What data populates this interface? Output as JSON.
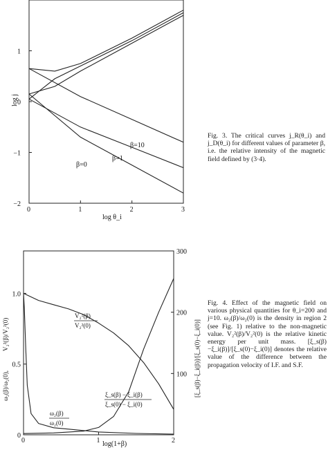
{
  "figure3": {
    "caption": "Fig. 3.  The critical curves  j_R(θ_i) and j_D(θ_i) for different values of parameter β, i.e. the relative intensity of the magnetic field defined by (3·4).",
    "xlabel": "log θ_i",
    "ylabel": "log j",
    "x_ticks": [
      "0",
      "1",
      "2",
      "3"
    ],
    "y_ticks": [
      "1",
      "0",
      "−1",
      "−2"
    ],
    "curve_labels": [
      "β=10",
      "β=1",
      "β=0"
    ]
  },
  "figure4": {
    "caption": "Fig. 4.  Effect of the magnetic field on various physical quantities for θ_i=200 and j=10. ω₂(β)/ω₂(0) is the density in region 2 (see Fig. 1) relative to the non-magnetic value. V₂²(β)/V₂²(0) is the relative kinetic energy per unit mass. [ξ_s(β)−ξ_i(β)]/[ξ_s(0)−ξ_i(0)] denotes the relative value of the difference between the propagation velocity of I.F. and S.F.",
    "xlabel": "log(1+β)",
    "ylabel_left_top": "V₂²(β)/V₂²(0)",
    "ylabel_left_bottom": "ω₂(β)/ω₂(0),",
    "ylabel_right": "[ξ_s(β)−ξ_i(β)]/[ξ_s(0)−ξ_i(0)]",
    "x_ticks": [
      "0",
      "1",
      "2"
    ],
    "y_left_ticks": [
      "1.0",
      "0.5",
      "0"
    ],
    "y_right_ticks": [
      "300",
      "200",
      "100"
    ],
    "label_v_num": "V₂²(β)",
    "label_v_den": "V₂²(0)",
    "label_xi_num": "ξ_s(β) − ξ_i(β)",
    "label_xi_den": "ξ_s(0) − ξ_i(0)",
    "label_w_num": "ω₂(β)",
    "label_w_den": "ω₂(0)"
  },
  "chart_data": [
    {
      "type": "line",
      "title": "",
      "xlabel": "log θ_i",
      "ylabel": "log j",
      "xlim": [
        0,
        3
      ],
      "ylim": [
        -2,
        2
      ],
      "x_ticks": [
        0,
        1,
        2,
        3
      ],
      "y_ticks": [
        1,
        0,
        -1,
        -2
      ],
      "series": [
        {
          "name": "β=10",
          "x": [
            0,
            1,
            2,
            3
          ],
          "y": [
            0.65,
            0.1,
            -0.35,
            -0.8
          ]
        },
        {
          "name": "β=1",
          "x": [
            0,
            1,
            2,
            3
          ],
          "y": [
            0.05,
            -0.5,
            -0.9,
            -1.3
          ]
        },
        {
          "name": "β=0",
          "x": [
            0,
            1,
            2,
            3
          ],
          "y": [
            0.15,
            -0.7,
            -1.25,
            -1.8
          ]
        },
        {
          "x": [
            0,
            0.5,
            1,
            2,
            3
          ],
          "y": [
            0.65,
            0.6,
            0.75,
            1.25,
            1.8
          ]
        },
        {
          "x": [
            0,
            0.5,
            1,
            2,
            3
          ],
          "y": [
            0.05,
            0.45,
            0.7,
            1.2,
            1.75
          ]
        },
        {
          "x": [
            0,
            0.5,
            1,
            2,
            3
          ],
          "y": [
            0.15,
            0.3,
            0.6,
            1.15,
            1.7
          ]
        }
      ]
    },
    {
      "type": "line",
      "title": "",
      "xlabel": "log(1+β)",
      "xlim": [
        0,
        2
      ],
      "ylim_left": [
        0,
        1.3
      ],
      "ylim_right": [
        0,
        300
      ],
      "x_ticks": [
        0,
        1,
        2
      ],
      "y_left_ticks": [
        0,
        0.5,
        1.0
      ],
      "y_right_ticks": [
        100,
        200,
        300
      ],
      "series": [
        {
          "name": "V₂²(β)/V₂²(0)",
          "axis": "left",
          "x": [
            0,
            0.2,
            0.4,
            0.6,
            0.8,
            1.0,
            1.2,
            1.4,
            1.6,
            1.8,
            2.0
          ],
          "y": [
            1.0,
            0.95,
            0.92,
            0.89,
            0.85,
            0.79,
            0.72,
            0.63,
            0.51,
            0.36,
            0.18
          ]
        },
        {
          "name": "ω₂(β)/ω₂(0)",
          "axis": "left",
          "x": [
            0,
            0.01,
            0.03,
            0.05,
            0.1,
            0.2,
            0.4,
            0.6,
            1.0,
            1.5,
            2.0
          ],
          "y": [
            1.0,
            0.9,
            0.6,
            0.35,
            0.15,
            0.08,
            0.05,
            0.04,
            0.02,
            0.01,
            0.005
          ]
        },
        {
          "name": "[ξ_s(β)−ξ_i(β)]/[ξ_s(0)−ξ_i(0)]",
          "axis": "right",
          "x": [
            0,
            0.4,
            0.8,
            1.0,
            1.2,
            1.4,
            1.6,
            1.8,
            2.0
          ],
          "y": [
            2,
            3,
            6,
            12,
            30,
            70,
            140,
            200,
            255
          ]
        }
      ]
    }
  ]
}
